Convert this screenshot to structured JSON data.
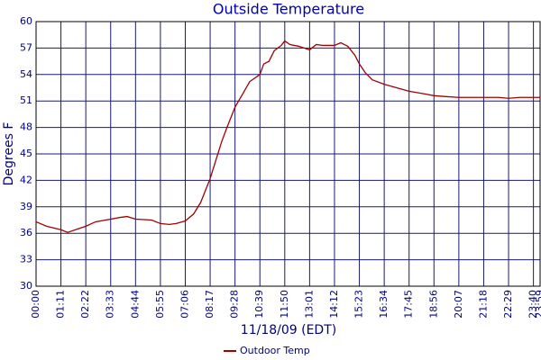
{
  "chart_data": {
    "type": "line",
    "title": "Outside Temperature",
    "y_label": "Degrees F",
    "x_label": "11/18/09 (EDT)",
    "x": [
      "00:00",
      "00:30",
      "01:11",
      "01:30",
      "02:00",
      "02:22",
      "02:50",
      "03:33",
      "04:00",
      "04:20",
      "04:44",
      "05:30",
      "05:55",
      "06:20",
      "06:40",
      "07:06",
      "07:30",
      "07:50",
      "08:17",
      "08:35",
      "08:50",
      "09:05",
      "09:28",
      "09:50",
      "10:10",
      "10:39",
      "10:50",
      "11:05",
      "11:20",
      "11:40",
      "11:50",
      "12:05",
      "12:30",
      "13:01",
      "13:20",
      "13:40",
      "14:12",
      "14:30",
      "14:50",
      "15:10",
      "15:23",
      "15:40",
      "16:00",
      "16:34",
      "17:00",
      "17:45",
      "18:30",
      "18:56",
      "19:30",
      "20:07",
      "21:18",
      "22:00",
      "22:29",
      "23:00",
      "23:59"
    ],
    "series": [
      {
        "name": "Outdoor Temp",
        "color": "#a00000",
        "values": [
          37.3,
          36.8,
          36.4,
          36.1,
          36.5,
          36.8,
          37.3,
          37.6,
          37.8,
          37.9,
          37.6,
          37.5,
          37.1,
          37.0,
          37.1,
          37.4,
          38.2,
          39.5,
          42.2,
          44.5,
          46.4,
          48.0,
          50.3,
          51.8,
          53.2,
          54.0,
          55.2,
          55.5,
          56.7,
          57.3,
          57.8,
          57.4,
          57.2,
          56.8,
          57.4,
          57.3,
          57.3,
          57.6,
          57.2,
          56.2,
          55.2,
          54.2,
          53.4,
          52.9,
          52.6,
          52.1,
          51.8,
          51.6,
          51.5,
          51.4,
          51.4,
          51.4,
          51.3,
          51.4,
          51.4
        ]
      }
    ],
    "xlim": [
      "00:00",
      "23:59"
    ],
    "xticks": [
      "00:00",
      "01:11",
      "02:22",
      "03:33",
      "04:44",
      "05:55",
      "07:06",
      "08:17",
      "09:28",
      "10:39",
      "11:50",
      "13:01",
      "14:12",
      "15:23",
      "16:34",
      "17:45",
      "18:56",
      "20:07",
      "21:18",
      "22:29",
      "23:40",
      "23:59"
    ],
    "ylim": [
      30,
      60
    ],
    "yticks": [
      30,
      33,
      36,
      39,
      42,
      45,
      48,
      51,
      54,
      57,
      60
    ],
    "grid": true,
    "legend": "bottom"
  }
}
